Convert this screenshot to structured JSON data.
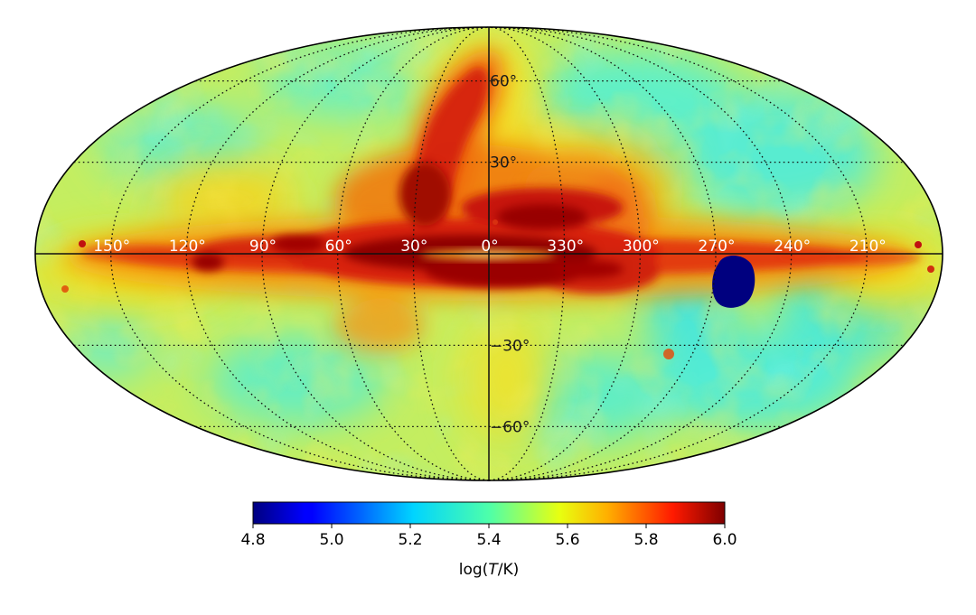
{
  "map": {
    "projection": "mollweide",
    "coordinate_system": "galactic",
    "quantity": "log(T/K)",
    "longitude_labels": [
      "150°",
      "120°",
      "90°",
      "60°",
      "30°",
      "0°",
      "330°",
      "300°",
      "270°",
      "240°",
      "210°"
    ],
    "longitude_values": [
      150,
      120,
      90,
      60,
      30,
      0,
      330,
      300,
      270,
      240,
      210
    ],
    "latitude_labels": [
      "60°",
      "30°",
      "−30°",
      "−60°"
    ],
    "latitude_values": [
      60,
      30,
      -30,
      -60
    ],
    "grid": "dotted",
    "colors": {
      "background_field": "#c8f05a",
      "cool": "#3ef0d0",
      "warm": "#f0d020",
      "hot": "#e03010",
      "hottest": "#8b0000",
      "masked_region": "#00007f"
    }
  },
  "colorbar": {
    "min": 4.8,
    "max": 6.0,
    "ticks": [
      "4.8",
      "5.0",
      "5.2",
      "5.4",
      "5.6",
      "5.8",
      "6.0"
    ],
    "tick_values": [
      4.8,
      5.0,
      5.2,
      5.4,
      5.6,
      5.8,
      6.0
    ],
    "label_prefix": "log(",
    "label_var": "T",
    "label_suffix": "/K)",
    "colormap": "jet"
  }
}
